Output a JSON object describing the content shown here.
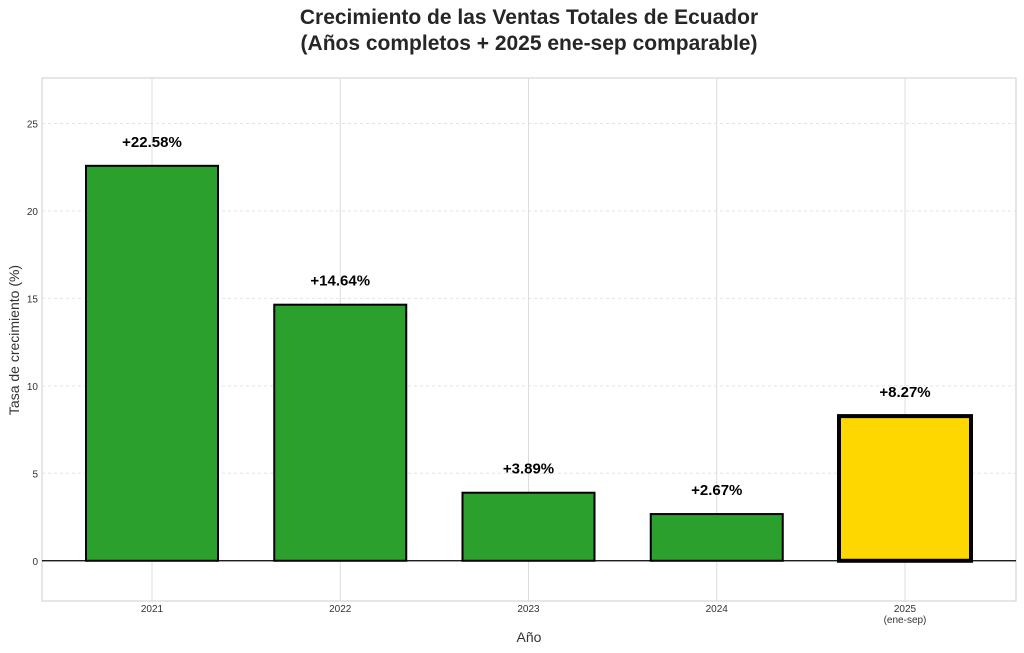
{
  "chart_data": {
    "type": "bar",
    "title_lines": [
      "Crecimiento de las Ventas Totales de Ecuador",
      "(Años completos + 2025 ene-sep comparable)"
    ],
    "xlabel": "Año",
    "ylabel": "Tasa de crecimiento (%)",
    "categories": [
      [
        "2021"
      ],
      [
        "2022"
      ],
      [
        "2023"
      ],
      [
        "2024"
      ],
      [
        "2025",
        "(ene-sep)"
      ]
    ],
    "values": [
      22.58,
      14.64,
      3.89,
      2.67,
      8.27
    ],
    "data_labels": [
      "+22.58%",
      "+14.64%",
      "+3.89%",
      "+2.67%",
      "+8.27%"
    ],
    "colors": [
      "#2ca02c",
      "#2ca02c",
      "#2ca02c",
      "#2ca02c",
      "#ffd700"
    ],
    "highlighted": [
      false,
      false,
      false,
      false,
      true
    ],
    "yticks": [
      0,
      5,
      10,
      15,
      20,
      25
    ],
    "ylim": [
      -2.3,
      27.6
    ],
    "grid": true
  }
}
